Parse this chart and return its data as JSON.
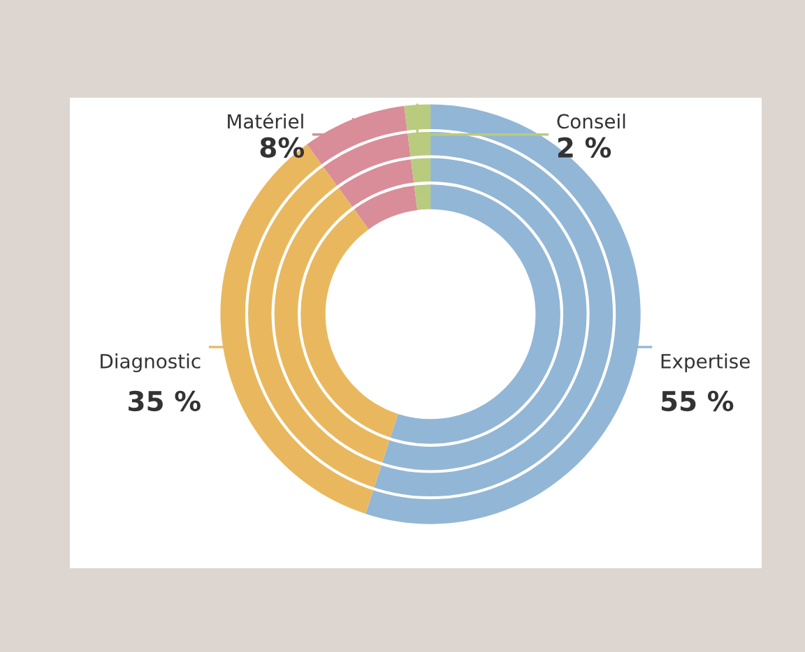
{
  "chart_data": {
    "type": "donut",
    "categories": [
      "Expertise",
      "Diagnostic",
      "Matériel",
      "Conseil"
    ],
    "values": [
      55,
      35,
      8,
      2
    ],
    "value_labels": [
      "55 %",
      "35 %",
      "8%",
      "2 %"
    ],
    "colors": [
      "#92b6d6",
      "#e9b85e",
      "#d98d98",
      "#b9cb7e"
    ]
  }
}
